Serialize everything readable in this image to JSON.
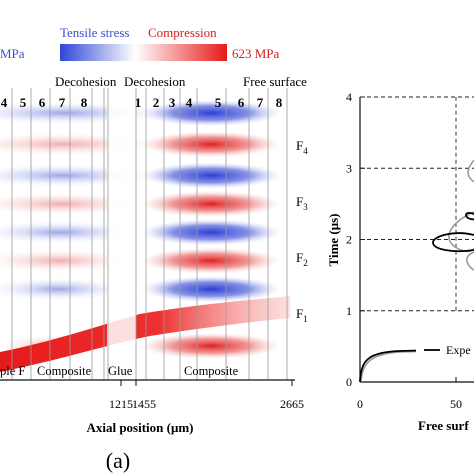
{
  "figure": {
    "colorbar": {
      "tensile_label": "Tensile stress",
      "compression_label": "Compression",
      "left_value": "MPa",
      "right_value": "623 MPa",
      "colors": {
        "blue": "#3a4fd0",
        "white": "#ffffff",
        "red": "#e41a1c"
      }
    },
    "panel_label": "(a)"
  },
  "chart_data": [
    {
      "type": "heatmap",
      "title": "",
      "xlabel": "Axial position (μm)",
      "ylabel": "",
      "x_ticks": [
        "1215",
        "1455",
        "2665"
      ],
      "top_labels": {
        "decohesion_1": "Decohesion",
        "decohesion_2": "Decohesion",
        "free_surface": "Free surface"
      },
      "region_labels": {
        "left": "ple F",
        "composite_left": "Composite",
        "glue": "Glue",
        "composite_right": "Composite"
      },
      "layer_numbers_left": [
        "4",
        "5",
        "6",
        "7",
        "8"
      ],
      "layer_numbers_right": [
        "1",
        "2",
        "3",
        "4",
        "5",
        "6",
        "7",
        "8"
      ],
      "feature_labels": [
        {
          "name": "F",
          "sub": "4"
        },
        {
          "name": "F",
          "sub": "3"
        },
        {
          "name": "F",
          "sub": "2"
        },
        {
          "name": "F",
          "sub": "1"
        }
      ],
      "stress_bands": [
        {
          "level": 0.94,
          "left": "tension",
          "right": "tension"
        },
        {
          "level": 0.83,
          "left": "compression",
          "right": "compression"
        },
        {
          "level": 0.72,
          "left": "tension",
          "right": "tension"
        },
        {
          "level": 0.62,
          "left": "compression",
          "right": "compression"
        },
        {
          "level": 0.52,
          "left": "tension",
          "right": "tension"
        },
        {
          "level": 0.42,
          "left": "compression",
          "right": "compression"
        },
        {
          "level": 0.32,
          "left": "tension",
          "right": "tension"
        },
        {
          "level": 0.12,
          "left": "compression",
          "right": "compression"
        }
      ]
    },
    {
      "type": "line",
      "title": "",
      "xlabel": "Free surf",
      "ylabel": "Time (μs)",
      "x_ticks": [
        "0",
        "50"
      ],
      "y_ticks": [
        "0",
        "1",
        "2",
        "3",
        "4"
      ],
      "ylim": [
        0,
        4
      ],
      "grid": false,
      "legend": {
        "placement": "bottom-right",
        "entries": [
          "Expe"
        ]
      },
      "series": [
        {
          "name": "Expe",
          "color": "#000000"
        },
        {
          "color": "#9a9a9a"
        }
      ]
    }
  ]
}
